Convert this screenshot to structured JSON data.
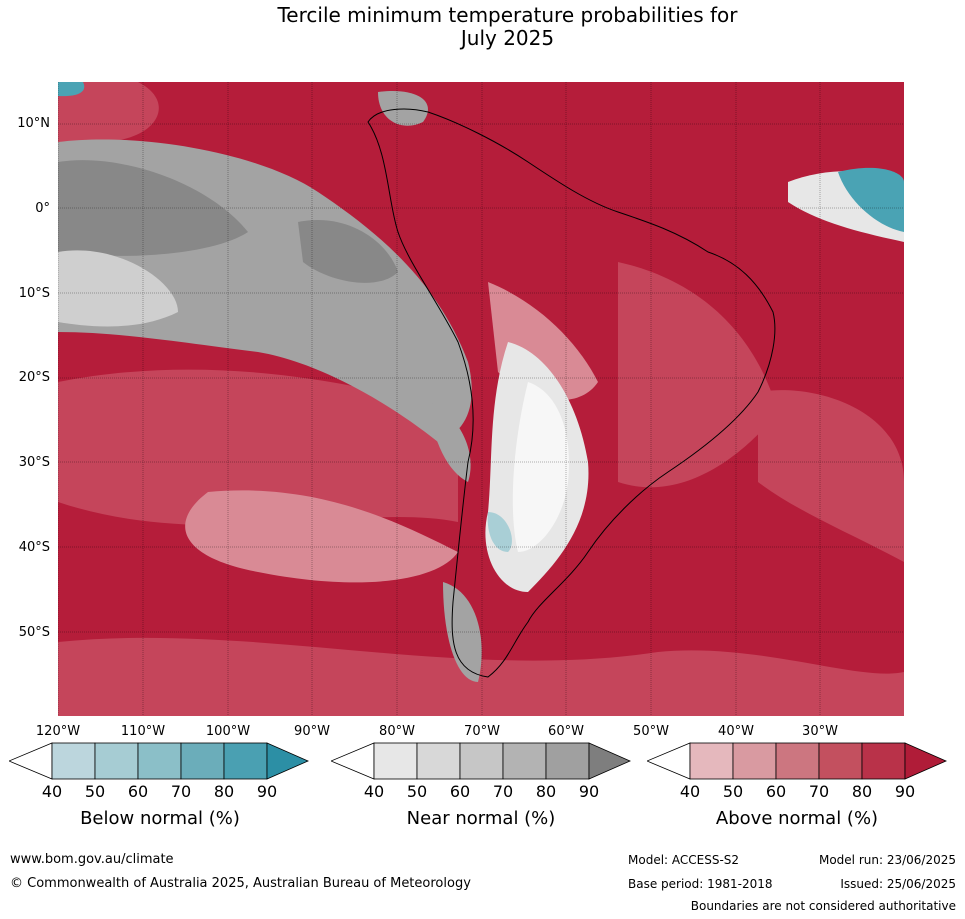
{
  "title_line1": "Tercile minimum temperature probabilities for",
  "title_line2": "July 2025",
  "lat_labels": [
    "10°N",
    "0°",
    "10°S",
    "20°S",
    "30°S",
    "40°S",
    "50°S"
  ],
  "lon_labels": [
    "120°W",
    "110°W",
    "100°W",
    "90°W",
    "80°W",
    "70°W",
    "60°W",
    "50°W",
    "40°W",
    "30°W"
  ],
  "colorbars": [
    {
      "label": "Below normal (%)",
      "ticks": [
        "40",
        "50",
        "60",
        "70",
        "80",
        "90"
      ],
      "colors": [
        "#ffffff",
        "#bcd6dd",
        "#a6ccd3",
        "#8bbfc8",
        "#6badba",
        "#4aa0b2",
        "#2c8fa5"
      ]
    },
    {
      "label": "Near normal (%)",
      "ticks": [
        "40",
        "50",
        "60",
        "70",
        "80",
        "90"
      ],
      "colors": [
        "#ffffff",
        "#e7e7e7",
        "#d8d8d8",
        "#c6c6c6",
        "#b3b3b3",
        "#a0a0a0",
        "#7e7e7e"
      ]
    },
    {
      "label": "Above normal (%)",
      "ticks": [
        "40",
        "50",
        "60",
        "70",
        "80",
        "90"
      ],
      "colors": [
        "#ffffff",
        "#e5b8bd",
        "#d99aa1",
        "#cc7680",
        "#c3505f",
        "#b93249",
        "#b01c38"
      ]
    }
  ],
  "map_colors": {
    "ocean_above": "#b51d3a",
    "above_mid": "#c5455b",
    "above_light": "#d98a95",
    "near_dark": "#888888",
    "near_mid": "#a3a3a3",
    "near_light": "#dcdcdc",
    "below": "#4aa3b4",
    "below_light": "#a9cfd6"
  },
  "footer": {
    "website": "www.bom.gov.au/climate",
    "copyright": "© Commonwealth of Australia 2025, Australian Bureau of Meteorology",
    "model": "Model: ACCESS-S2",
    "model_run": "Model run: 23/06/2025",
    "base_period": "Base period: 1981-2018",
    "issued": "Issued: 25/06/2025",
    "disclaimer": "Boundaries are not considered authoritative"
  }
}
